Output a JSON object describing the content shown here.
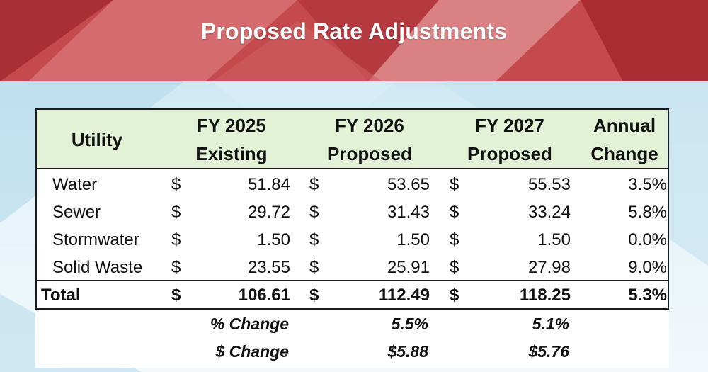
{
  "title": "Proposed Rate Adjustments",
  "colors": {
    "banner": "#b8383d",
    "header_fill": "#e3f1d7",
    "border": "#1a1a1a"
  },
  "table": {
    "headers": {
      "utility": "Utility",
      "fy2025": [
        "FY 2025",
        "Existing"
      ],
      "fy2026": [
        "FY 2026",
        "Proposed"
      ],
      "fy2027": [
        "FY 2027",
        "Proposed"
      ],
      "annual": [
        "Annual",
        "Change"
      ]
    },
    "currency_symbol": "$",
    "rows": [
      {
        "utility": "Water",
        "fy2025": "51.84",
        "fy2026": "53.65",
        "fy2027": "55.53",
        "annual": "3.5%"
      },
      {
        "utility": "Sewer",
        "fy2025": "29.72",
        "fy2026": "31.43",
        "fy2027": "33.24",
        "annual": "5.8%"
      },
      {
        "utility": "Stormwater",
        "fy2025": "1.50",
        "fy2026": "1.50",
        "fy2027": "1.50",
        "annual": "0.0%"
      },
      {
        "utility": "Solid Waste",
        "fy2025": "23.55",
        "fy2026": "25.91",
        "fy2027": "27.98",
        "annual": "9.0%"
      }
    ],
    "total": {
      "label": "Total",
      "fy2025": "106.61",
      "fy2026": "112.49",
      "fy2027": "118.25",
      "annual": "5.3%"
    },
    "pct_change": {
      "label": "% Change",
      "fy2026": "5.5%",
      "fy2027": "5.1%"
    },
    "dollar_change": {
      "label": "$ Change",
      "fy2026": "$5.88",
      "fy2027": "$5.76"
    }
  }
}
